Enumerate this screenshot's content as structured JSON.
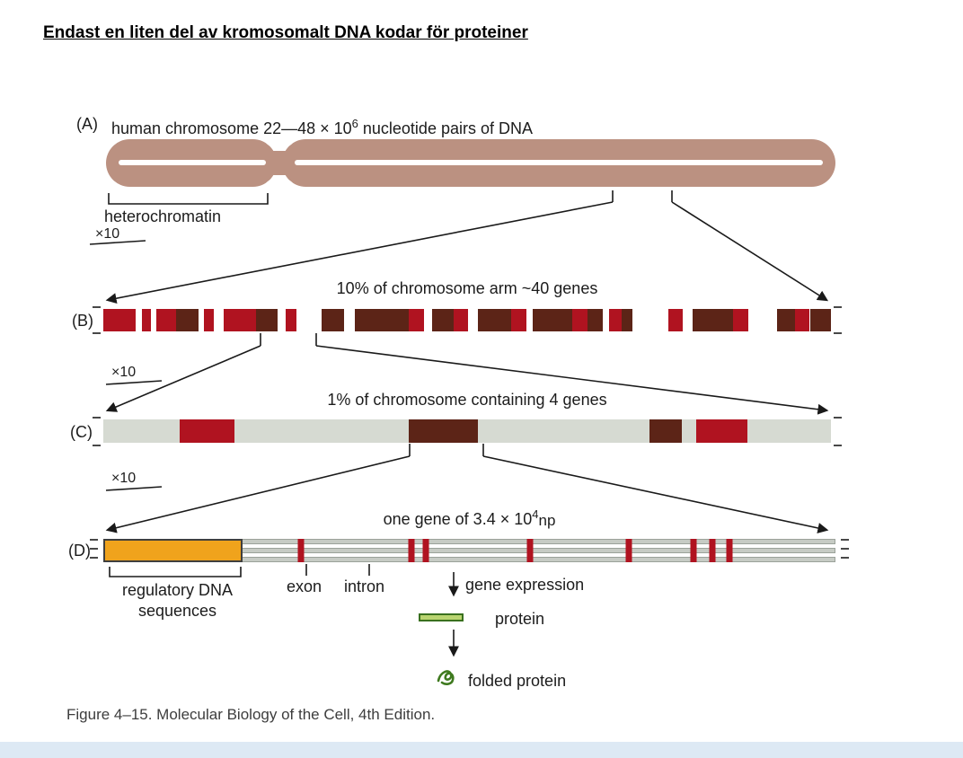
{
  "slide": {
    "title": "Endast en liten del av kromosomalt DNA kodar för proteiner",
    "caption": "Figure 4–15. Molecular Biology of the Cell, 4th Edition."
  },
  "panels": {
    "a": {
      "label": "(A)",
      "heading_pre": "human chromosome 22—48 × 10",
      "heading_sup": "6",
      "heading_post": " nucleotide pairs of DNA",
      "heterochromatin": "heterochromatin",
      "zoom": "×10"
    },
    "b": {
      "label": "(B)",
      "heading": "10% of chromosome arm ~40 genes",
      "zoom": "×10"
    },
    "c": {
      "label": "(C)",
      "heading": "1% of chromosome containing 4 genes",
      "zoom": "×10"
    },
    "d": {
      "label": "(D)",
      "heading_pre": "one gene of 3.4 × 10",
      "heading_sup": "4",
      "heading_unit": "np",
      "regulatory_line1": "regulatory DNA",
      "regulatory_line2": "sequences",
      "exon": "exon",
      "intron": "intron",
      "gene_expression": "gene expression",
      "protein": "protein",
      "folded_protein": "folded protein"
    }
  },
  "colors": {
    "red": "#b01320",
    "brown": "#5c2417",
    "orange": "#f0a31c",
    "bar_bg_white": "#ffffff",
    "bar_bg_gray": "#d6dad2",
    "chromosome": "#bb9181",
    "protein_fill": "#b9d470",
    "protein_stroke": "#39701e",
    "line": "#1a1a1a",
    "footer_band": "#dde9f4"
  },
  "bars": {
    "b": {
      "background": "#ffffff",
      "segments": [
        {
          "color": "red",
          "from": 0.0,
          "to": 0.045
        },
        {
          "color": "red",
          "from": 0.053,
          "to": 0.066
        },
        {
          "color": "red",
          "from": 0.073,
          "to": 0.1
        },
        {
          "color": "brown",
          "from": 0.1,
          "to": 0.131
        },
        {
          "color": "red",
          "from": 0.138,
          "to": 0.152
        },
        {
          "color": "red",
          "from": 0.166,
          "to": 0.21
        },
        {
          "color": "brown",
          "from": 0.21,
          "to": 0.24
        },
        {
          "color": "red",
          "from": 0.25,
          "to": 0.266
        },
        {
          "color": "brown",
          "from": 0.3,
          "to": 0.331
        },
        {
          "color": "brown",
          "from": 0.346,
          "to": 0.42
        },
        {
          "color": "red",
          "from": 0.42,
          "to": 0.441
        },
        {
          "color": "brown",
          "from": 0.452,
          "to": 0.481
        },
        {
          "color": "red",
          "from": 0.481,
          "to": 0.501
        },
        {
          "color": "brown",
          "from": 0.515,
          "to": 0.56
        },
        {
          "color": "red",
          "from": 0.56,
          "to": 0.582
        },
        {
          "color": "brown",
          "from": 0.59,
          "to": 0.645
        },
        {
          "color": "red",
          "from": 0.645,
          "to": 0.666
        },
        {
          "color": "brown",
          "from": 0.666,
          "to": 0.686
        },
        {
          "color": "red",
          "from": 0.695,
          "to": 0.712
        },
        {
          "color": "brown",
          "from": 0.712,
          "to": 0.727
        },
        {
          "color": "red",
          "from": 0.776,
          "to": 0.796
        },
        {
          "color": "brown",
          "from": 0.81,
          "to": 0.866
        },
        {
          "color": "red",
          "from": 0.866,
          "to": 0.887
        },
        {
          "color": "brown",
          "from": 0.926,
          "to": 0.951
        },
        {
          "color": "red",
          "from": 0.951,
          "to": 0.971
        },
        {
          "color": "brown",
          "from": 0.971,
          "to": 1.0
        }
      ]
    },
    "c": {
      "background": "#d6dad2",
      "segments": [
        {
          "color": "red",
          "from": 0.105,
          "to": 0.18
        },
        {
          "color": "brown",
          "from": 0.42,
          "to": 0.515
        },
        {
          "color": "brown",
          "from": 0.75,
          "to": 0.795
        },
        {
          "color": "red",
          "from": 0.815,
          "to": 0.885
        }
      ]
    },
    "d": {
      "background": "transparent",
      "segments": [
        {
          "color": "orange",
          "from": 0.0,
          "to": 0.19,
          "outlined": true
        }
      ],
      "ticks": [
        0.27,
        0.421,
        0.44,
        0.583,
        0.718,
        0.806,
        0.832,
        0.855
      ],
      "tick_color": "red"
    }
  }
}
